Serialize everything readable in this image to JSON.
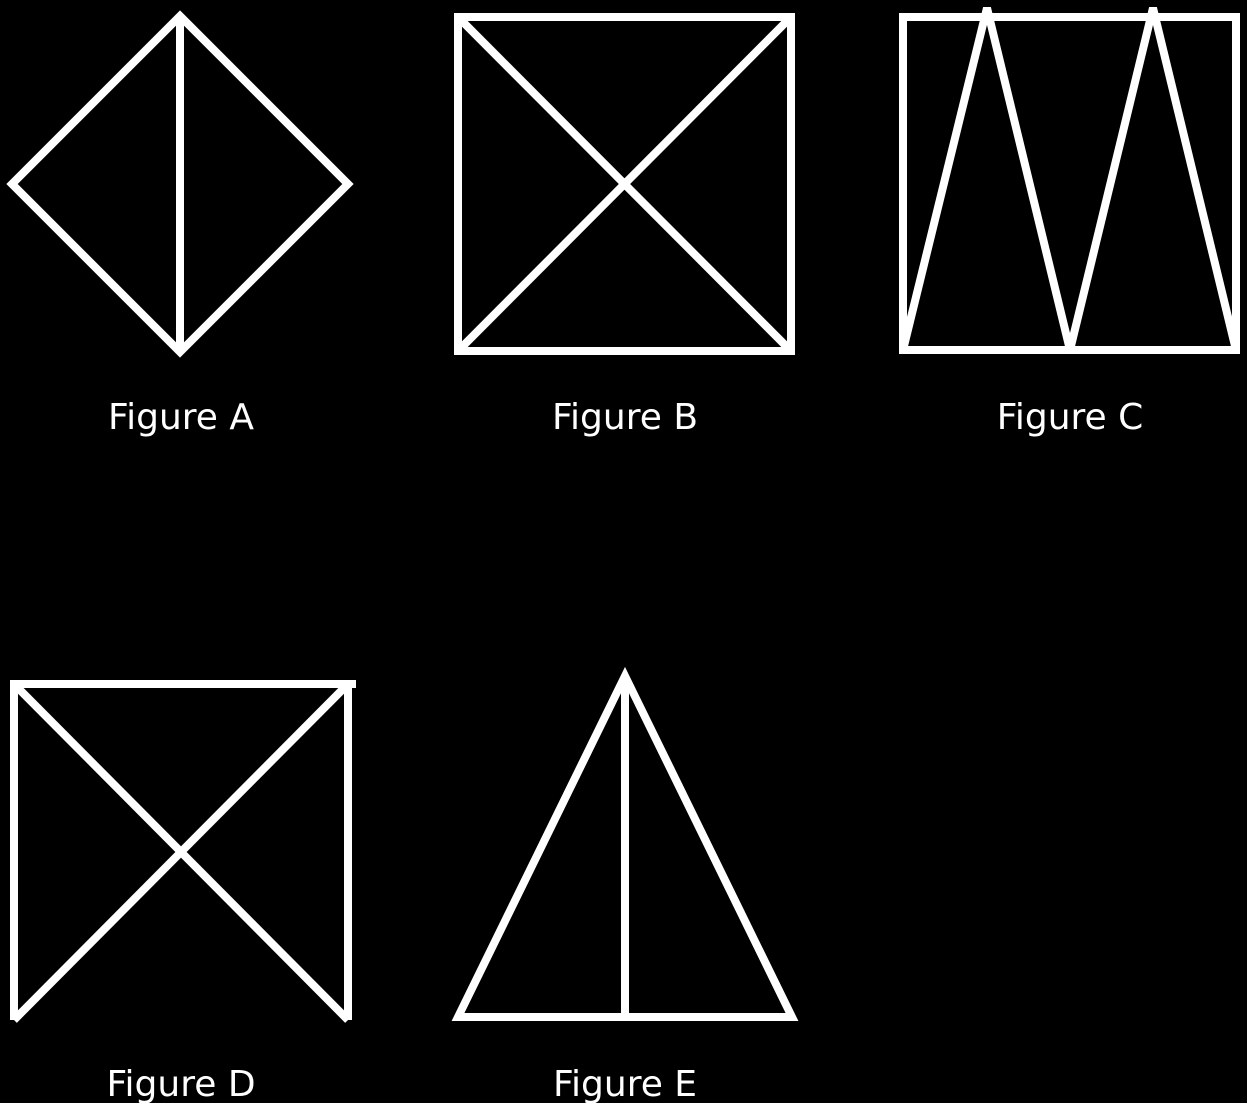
{
  "background_color": "#000000",
  "stroke_color": "#ffffff",
  "figures": [
    {
      "id": "a",
      "label": "Figure A",
      "shape": "diamond-with-vertical-line"
    },
    {
      "id": "b",
      "label": "Figure B",
      "shape": "square-with-both-diagonals"
    },
    {
      "id": "c",
      "label": "Figure C",
      "shape": "rectangle-with-zigzag"
    },
    {
      "id": "d",
      "label": "Figure D",
      "shape": "open-bottom-square-with-diagonals"
    },
    {
      "id": "e",
      "label": "Figure E",
      "shape": "triangle-with-vertical-median"
    }
  ]
}
